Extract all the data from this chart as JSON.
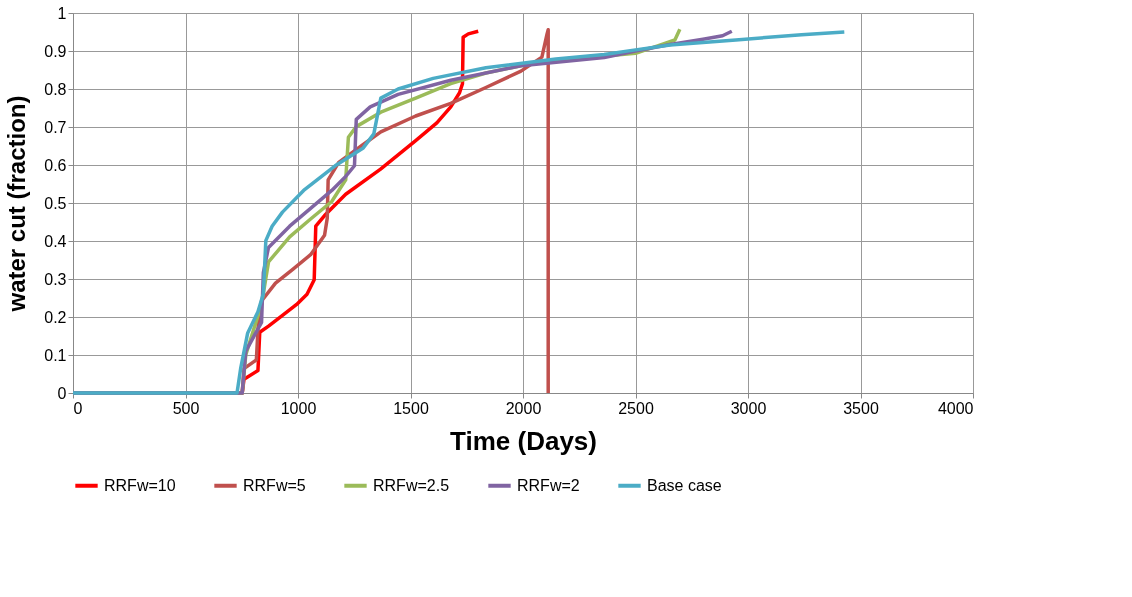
{
  "chart_data": {
    "type": "line",
    "xlabel": "Time (Days)",
    "ylabel": "water cut (fraction)",
    "xlim": [
      0,
      4000
    ],
    "xticks": [
      0,
      500,
      1000,
      1500,
      2000,
      2500,
      3000,
      3500,
      4000
    ],
    "ylim": [
      0,
      1
    ],
    "yticks": [
      0,
      0.1,
      0.2,
      0.3,
      0.4,
      0.5,
      0.6,
      0.7,
      0.8,
      0.9,
      1
    ],
    "grid": true,
    "legend": "bottom",
    "marker": "none",
    "line_style": "solid",
    "series": [
      {
        "name": "RRFw=10",
        "color": "#ff0000",
        "x": [
          0,
          752,
          760,
          822,
          830,
          869,
          931,
          994,
          1040,
          1072,
          1079,
          1118,
          1212,
          1367,
          1523,
          1617,
          1679,
          1718,
          1731,
          1734,
          1757,
          1801
        ],
        "values": [
          0,
          0,
          0.036,
          0.059,
          0.16,
          0.176,
          0.204,
          0.233,
          0.26,
          0.298,
          0.439,
          0.467,
          0.523,
          0.589,
          0.664,
          0.711,
          0.753,
          0.79,
          0.814,
          0.936,
          0.945,
          0.952
        ]
      },
      {
        "name": "RRFw=5",
        "color": "#c0504d",
        "x": [
          0,
          752,
          760,
          815,
          825,
          838,
          900,
          978,
          1056,
          1118,
          1130,
          1134,
          1181,
          1290,
          1368,
          1523,
          1679,
          1835,
          1991,
          2084,
          2107,
          2112,
          2112
        ],
        "values": [
          0,
          0,
          0.064,
          0.087,
          0.2,
          0.242,
          0.289,
          0.326,
          0.364,
          0.415,
          0.46,
          0.561,
          0.607,
          0.654,
          0.687,
          0.729,
          0.762,
          0.804,
          0.847,
          0.884,
          0.945,
          0.956,
          0
        ]
      },
      {
        "name": "RRFw=2.5",
        "color": "#9bbb59",
        "x": [
          0,
          752,
          768,
          838,
          869,
          963,
          1056,
          1150,
          1212,
          1224,
          1259,
          1368,
          1523,
          1679,
          1835,
          1991,
          2146,
          2500,
          2595,
          2675,
          2697
        ],
        "values": [
          0,
          0,
          0.101,
          0.233,
          0.345,
          0.411,
          0.458,
          0.504,
          0.561,
          0.673,
          0.701,
          0.739,
          0.776,
          0.814,
          0.842,
          0.861,
          0.875,
          0.894,
          0.913,
          0.929,
          0.957
        ]
      },
      {
        "name": "RRFw=2",
        "color": "#8064a2",
        "x": [
          0,
          752,
          768,
          838,
          846,
          869,
          963,
          1056,
          1150,
          1212,
          1251,
          1259,
          1321,
          1445,
          1679,
          1991,
          2361,
          2500,
          2654,
          2800,
          2887,
          2928
        ],
        "values": [
          0,
          0,
          0.11,
          0.186,
          0.317,
          0.383,
          0.439,
          0.486,
          0.533,
          0.57,
          0.598,
          0.72,
          0.753,
          0.786,
          0.823,
          0.861,
          0.883,
          0.9,
          0.917,
          0.931,
          0.94,
          0.952
        ]
      },
      {
        "name": "Base case",
        "color": "#4bacc6",
        "x": [
          0,
          729,
          745,
          776,
          822,
          846,
          857,
          885,
          931,
          1025,
          1165,
          1290,
          1337,
          1368,
          1445,
          1601,
          1835,
          2146,
          2361,
          2500,
          2654,
          2946,
          3238,
          3428
        ],
        "values": [
          0,
          0,
          0.064,
          0.157,
          0.214,
          0.261,
          0.401,
          0.439,
          0.476,
          0.533,
          0.598,
          0.645,
          0.682,
          0.776,
          0.8,
          0.828,
          0.856,
          0.879,
          0.891,
          0.903,
          0.916,
          0.929,
          0.943,
          0.95
        ]
      }
    ]
  }
}
